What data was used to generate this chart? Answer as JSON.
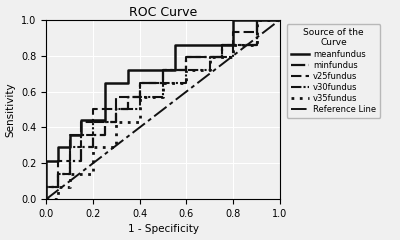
{
  "title": "ROC Curve",
  "xlabel": "1 - Specificity",
  "ylabel": "Sensitivity",
  "legend_title": "Source of the\nCurve",
  "xlim": [
    0.0,
    1.0
  ],
  "ylim": [
    0.0,
    1.0
  ],
  "xticks": [
    0.0,
    0.2,
    0.4,
    0.6,
    0.8,
    1.0
  ],
  "yticks": [
    0.0,
    0.2,
    0.4,
    0.6,
    0.8,
    1.0
  ],
  "fig_facecolor": "#f0f0f0",
  "ax_facecolor": "#f0f0f0",
  "curves": {
    "meanfundus": {
      "x": [
        0.0,
        0.0,
        0.05,
        0.05,
        0.1,
        0.1,
        0.15,
        0.15,
        0.2,
        0.2,
        0.25,
        0.25,
        0.35,
        0.35,
        0.4,
        0.4,
        0.55,
        0.55,
        0.6,
        0.6,
        0.75,
        0.75,
        0.8,
        0.8,
        0.9,
        0.9,
        0.95,
        0.95,
        1.0
      ],
      "y": [
        0.0,
        0.21,
        0.21,
        0.29,
        0.29,
        0.36,
        0.36,
        0.44,
        0.44,
        0.44,
        0.44,
        0.65,
        0.65,
        0.72,
        0.72,
        0.72,
        0.72,
        0.86,
        0.86,
        0.86,
        0.86,
        0.86,
        0.86,
        1.0,
        1.0,
        1.0,
        1.0,
        1.0,
        1.0
      ],
      "linestyle": "solid",
      "linewidth": 1.8,
      "color": "#111111"
    },
    "minfundus": {
      "x": [
        0.0,
        0.0,
        0.05,
        0.05,
        0.1,
        0.1,
        0.15,
        0.15,
        0.2,
        0.2,
        0.25,
        0.25,
        0.3,
        0.3,
        0.35,
        0.35,
        0.4,
        0.4,
        0.5,
        0.5,
        0.6,
        0.6,
        0.75,
        0.75,
        0.85,
        0.85,
        0.9,
        0.9,
        1.0
      ],
      "y": [
        0.0,
        0.07,
        0.07,
        0.14,
        0.14,
        0.21,
        0.21,
        0.29,
        0.29,
        0.36,
        0.36,
        0.43,
        0.43,
        0.5,
        0.5,
        0.57,
        0.57,
        0.65,
        0.65,
        0.72,
        0.72,
        0.79,
        0.79,
        0.86,
        0.86,
        0.86,
        0.86,
        1.0,
        1.0
      ],
      "linestyle": "dashdot",
      "linewidth": 1.6,
      "color": "#111111"
    },
    "v25fundus": {
      "x": [
        0.0,
        0.0,
        0.05,
        0.05,
        0.1,
        0.1,
        0.15,
        0.15,
        0.2,
        0.2,
        0.3,
        0.3,
        0.4,
        0.4,
        0.5,
        0.5,
        0.6,
        0.6,
        0.75,
        0.75,
        0.8,
        0.8,
        0.9,
        0.9,
        1.0
      ],
      "y": [
        0.0,
        0.07,
        0.07,
        0.21,
        0.21,
        0.36,
        0.36,
        0.43,
        0.43,
        0.5,
        0.5,
        0.57,
        0.57,
        0.65,
        0.65,
        0.72,
        0.72,
        0.79,
        0.79,
        0.86,
        0.86,
        0.93,
        0.93,
        1.0,
        1.0
      ],
      "linestyle": "dashed",
      "linewidth": 1.5,
      "color": "#111111"
    },
    "v30fundus": {
      "x": [
        0.0,
        0.0,
        0.05,
        0.05,
        0.1,
        0.1,
        0.15,
        0.15,
        0.2,
        0.2,
        0.3,
        0.3,
        0.4,
        0.4,
        0.5,
        0.5,
        0.6,
        0.6,
        0.7,
        0.7,
        0.8,
        0.8,
        0.9,
        0.9,
        1.0
      ],
      "y": [
        0.0,
        0.07,
        0.07,
        0.14,
        0.14,
        0.29,
        0.29,
        0.36,
        0.36,
        0.43,
        0.43,
        0.5,
        0.5,
        0.57,
        0.57,
        0.65,
        0.65,
        0.72,
        0.72,
        0.79,
        0.79,
        0.86,
        0.86,
        1.0,
        1.0
      ],
      "linestyle": "dashdotdotted",
      "linewidth": 1.5,
      "color": "#111111"
    },
    "v35fundus": {
      "x": [
        0.0,
        0.05,
        0.05,
        0.1,
        0.1,
        0.2,
        0.2,
        0.3,
        0.3,
        0.4,
        0.4,
        0.5,
        0.5,
        0.6,
        0.6,
        0.7,
        0.7,
        0.8,
        0.8,
        0.9,
        0.9,
        1.0
      ],
      "y": [
        0.0,
        0.0,
        0.07,
        0.07,
        0.14,
        0.14,
        0.29,
        0.29,
        0.43,
        0.43,
        0.57,
        0.57,
        0.65,
        0.65,
        0.72,
        0.72,
        0.79,
        0.79,
        0.86,
        0.86,
        1.0,
        1.0
      ],
      "linestyle": "dotted",
      "linewidth": 2.0,
      "color": "#111111"
    },
    "reference": {
      "x": [
        0.0,
        1.0
      ],
      "y": [
        0.0,
        1.0
      ],
      "linestyle": "longdashdot",
      "linewidth": 1.4,
      "color": "#111111"
    }
  },
  "legend_labels": [
    "meanfundus",
    "minfundus",
    "v25fundus",
    "v30fundus",
    "v35fundus",
    "Reference Line"
  ]
}
